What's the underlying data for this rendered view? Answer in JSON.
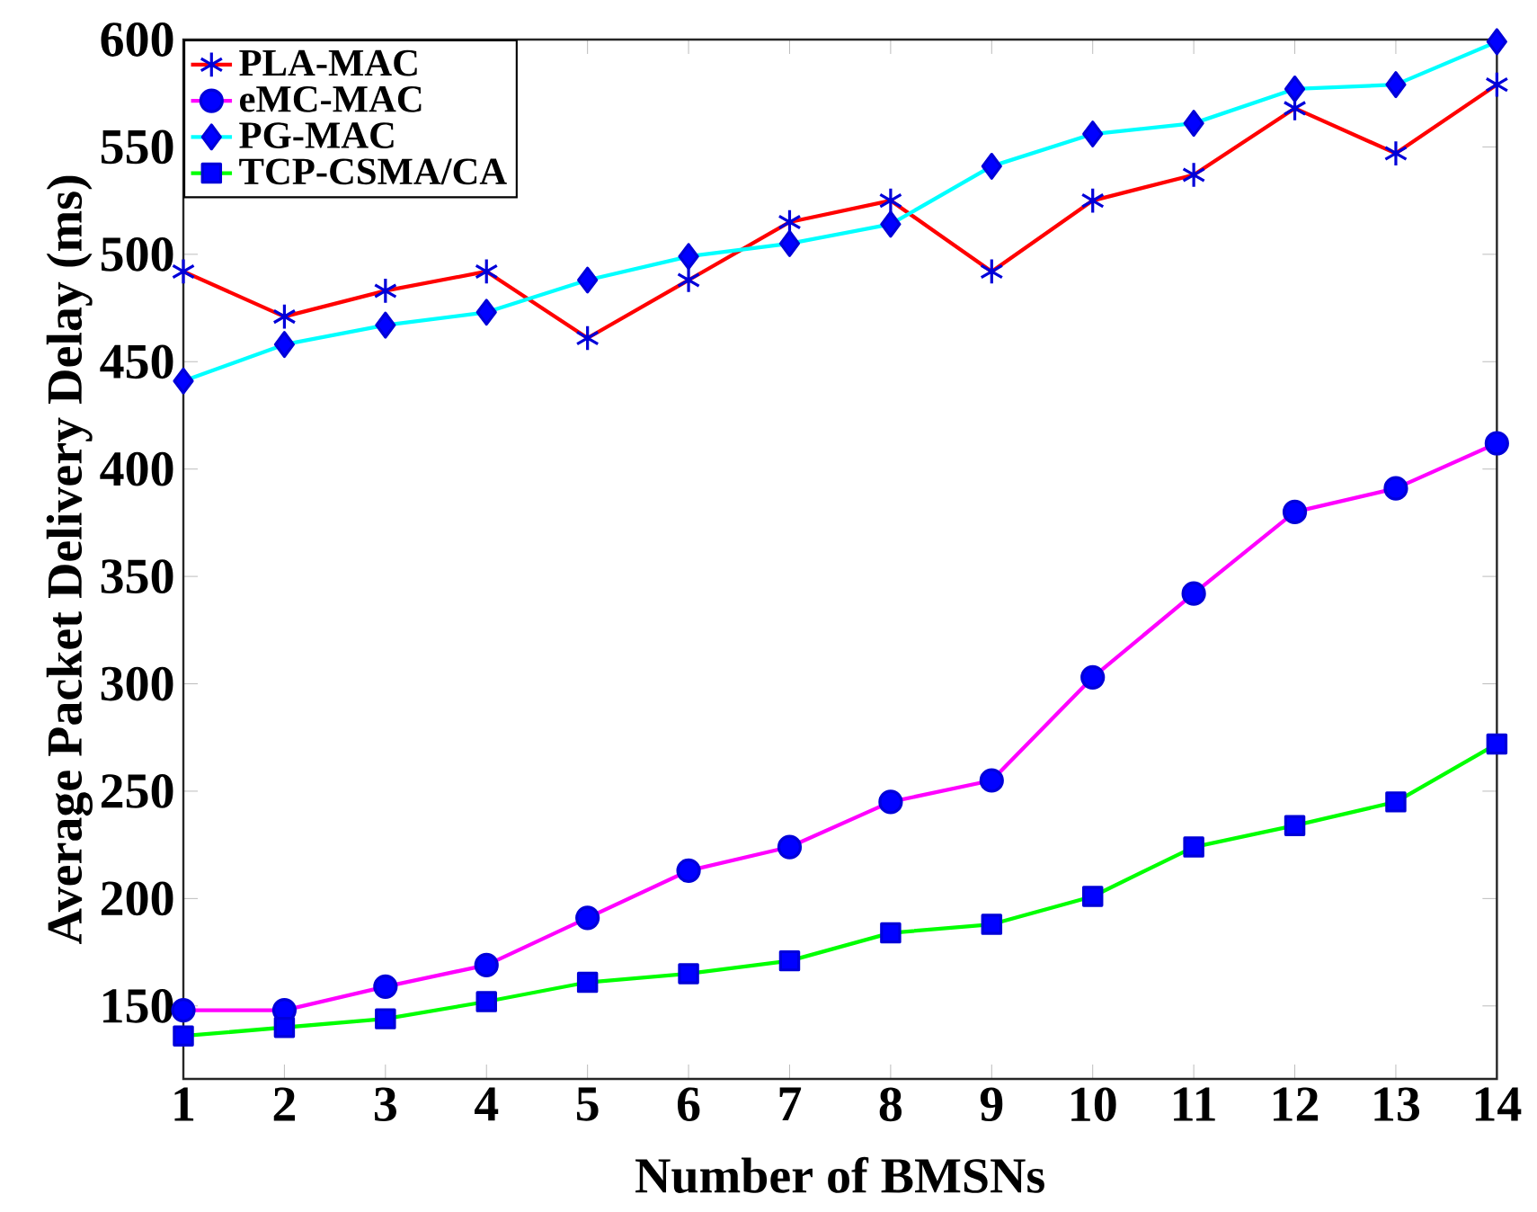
{
  "chart_data": {
    "type": "line",
    "xlabel": "Number of BMSNs",
    "ylabel": "Average Packet Delivery Delay (ms)",
    "x": [
      1,
      2,
      3,
      4,
      5,
      6,
      7,
      8,
      9,
      10,
      11,
      12,
      13,
      14
    ],
    "series": [
      {
        "name": "PLA-MAC",
        "color": "#ff0000",
        "marker": "cross",
        "values": [
          492,
          471,
          483,
          492,
          461,
          488,
          515,
          525,
          492,
          525,
          537,
          568,
          547,
          579
        ]
      },
      {
        "name": "eMC-MAC",
        "color": "#ff00ff",
        "marker": "circle",
        "values": [
          148,
          148,
          159,
          169,
          191,
          213,
          224,
          245,
          255,
          303,
          342,
          380,
          391,
          412
        ]
      },
      {
        "name": "PG-MAC",
        "color": "#00ffff",
        "marker": "diamond",
        "values": [
          441,
          458,
          467,
          473,
          488,
          499,
          505,
          514,
          541,
          556,
          561,
          577,
          579,
          599
        ]
      },
      {
        "name": "TCP-CSMA/CA",
        "color": "#00ff00",
        "marker": "square",
        "values": [
          136,
          140,
          144,
          152,
          161,
          165,
          171,
          184,
          188,
          201,
          224,
          234,
          245,
          272
        ]
      }
    ],
    "xlim": [
      1,
      14
    ],
    "xticks": [
      1,
      2,
      3,
      4,
      5,
      6,
      7,
      8,
      9,
      10,
      11,
      12,
      13,
      14
    ],
    "ylim": [
      116,
      600
    ],
    "yticks": [
      150,
      200,
      250,
      300,
      350,
      400,
      450,
      500,
      550,
      600
    ],
    "grid": false,
    "legend": "top left",
    "line_style": "solid"
  }
}
